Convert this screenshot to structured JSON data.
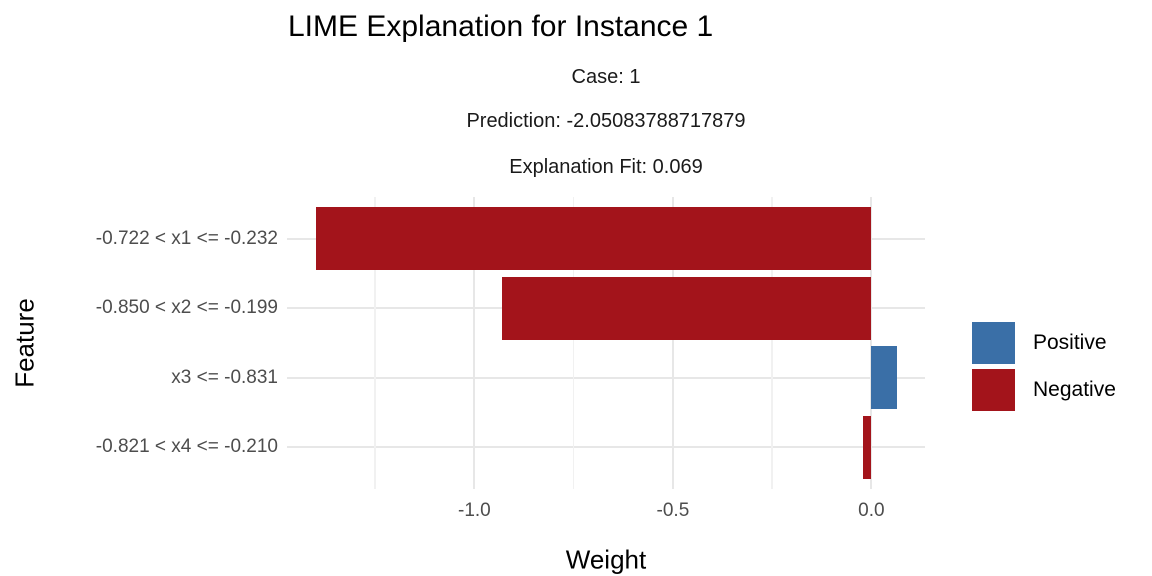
{
  "title": "LIME Explanation for Instance 1",
  "strip": {
    "case": "Case: 1",
    "prediction": "Prediction: -2.05083788717879",
    "fit": "Explanation Fit: 0.069"
  },
  "colors": {
    "positive": "#3A6FA7",
    "negative": "#A3141B",
    "grid_major": "#E7E7E7",
    "grid_minor": "#F1F1F1",
    "tick_label": "#4D4D4D",
    "text": "#000000",
    "background": "#FFFFFF"
  },
  "chart_data": {
    "type": "bar",
    "orientation": "horizontal",
    "title": "LIME Explanation for Instance 1",
    "subtitle_lines": [
      "Case: 1",
      "Prediction: -2.05083788717879",
      "Explanation Fit: 0.069"
    ],
    "categories": [
      "-0.722 < x1 <= -0.232",
      "-0.850 < x2 <= -0.199",
      "x3 <= -0.831",
      "-0.821 < x4 <= -0.210"
    ],
    "values": [
      -1.4,
      -0.93,
      0.064,
      -0.02
    ],
    "bar_signs": [
      "negative",
      "negative",
      "positive",
      "negative"
    ],
    "xlabel": "Weight",
    "ylabel": "Feature",
    "xlim": [
      -1.472,
      0.135
    ],
    "x_major_ticks": [
      -1.0,
      -0.5,
      0.0
    ],
    "x_tick_labels": [
      "-1.0",
      "-0.5",
      "0.0"
    ],
    "x_minor_ticks": [
      -1.25,
      -0.75,
      -0.25
    ],
    "grid": true,
    "legend": {
      "position": "right",
      "entries": [
        {
          "label": "Positive",
          "sign": "positive"
        },
        {
          "label": "Negative",
          "sign": "negative"
        }
      ]
    }
  }
}
